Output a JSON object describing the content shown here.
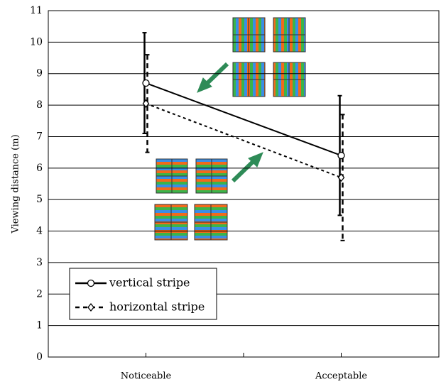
{
  "chart_data": {
    "type": "line",
    "y_label": "Viewing distance (m)",
    "categories": [
      "Noticeable",
      "Acceptable"
    ],
    "series": [
      {
        "name": "vertical stripe",
        "color": "#000000",
        "line_style": "solid",
        "marker": "circle",
        "values": [
          8.7,
          6.4
        ],
        "errors": [
          1.6,
          1.9
        ]
      },
      {
        "name": "horizontal stripe",
        "color": "#000000",
        "line_style": "dashed",
        "marker": "diamond",
        "values": [
          8.05,
          5.7
        ],
        "errors": [
          1.55,
          2.0
        ]
      }
    ],
    "ylim": [
      0,
      11
    ],
    "yticks": [
      0,
      1,
      2,
      3,
      4,
      5,
      6,
      7,
      8,
      9,
      10,
      11
    ],
    "grid": true,
    "legend": "lower left"
  }
}
